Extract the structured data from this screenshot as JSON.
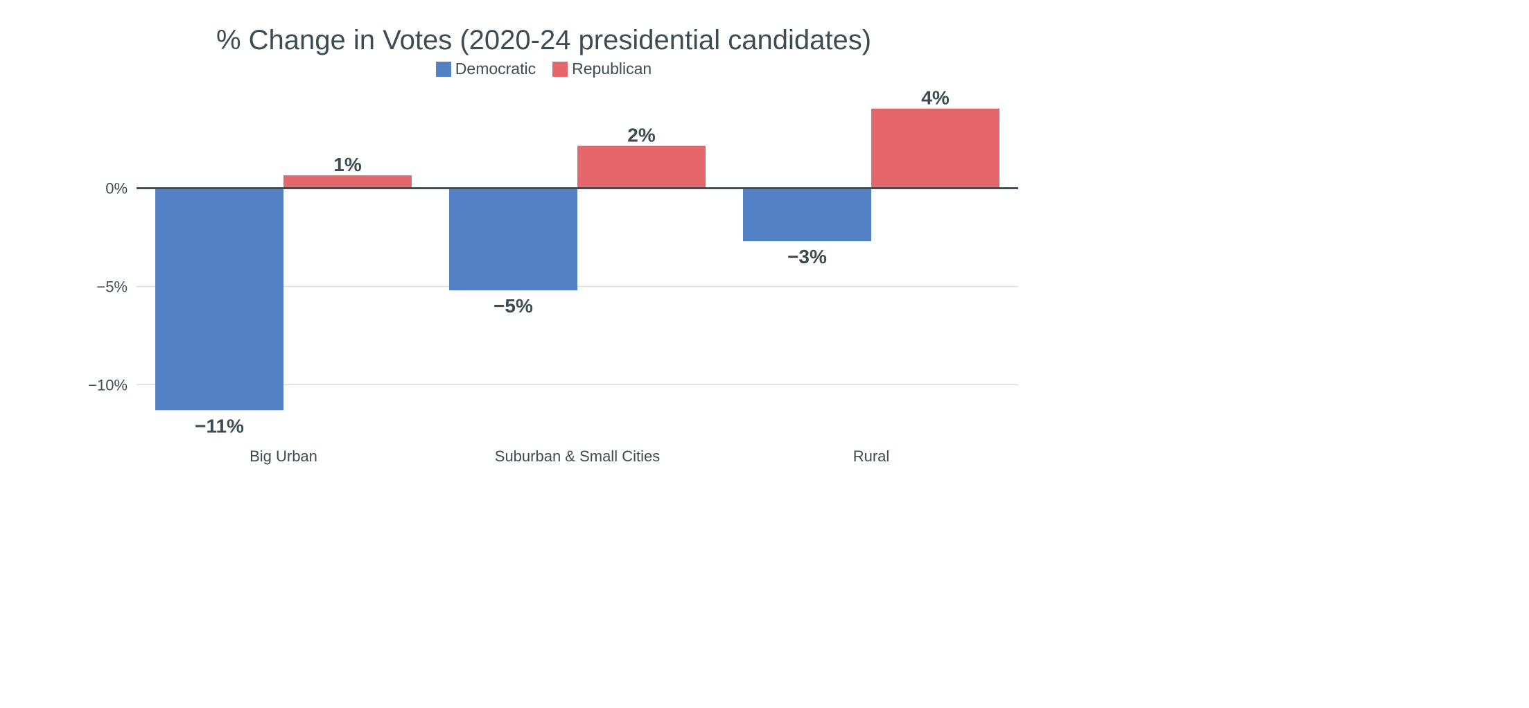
{
  "chart_data": {
    "type": "bar",
    "title": "% Change in Votes (2020-24 presidential candidates)",
    "categories": [
      "Big Urban",
      "Suburban & Small Cities",
      "Rural"
    ],
    "series": [
      {
        "name": "Democratic",
        "color": "#5381c5",
        "values": [
          -11.3,
          -5.2,
          -2.7
        ],
        "labels": [
          "−11%",
          "−5%",
          "−3%"
        ]
      },
      {
        "name": "Republican",
        "color": "#e5676b",
        "values": [
          0.65,
          2.15,
          4.05
        ],
        "labels": [
          "1%",
          "2%",
          "4%"
        ]
      }
    ],
    "yticks": [
      {
        "value": 0,
        "label": "0%"
      },
      {
        "value": -5,
        "label": "−5%"
      },
      {
        "value": -10,
        "label": "−10%"
      }
    ],
    "ylim": [
      -12.7,
      5.2
    ],
    "grid": true,
    "legend_position": "top-center"
  }
}
